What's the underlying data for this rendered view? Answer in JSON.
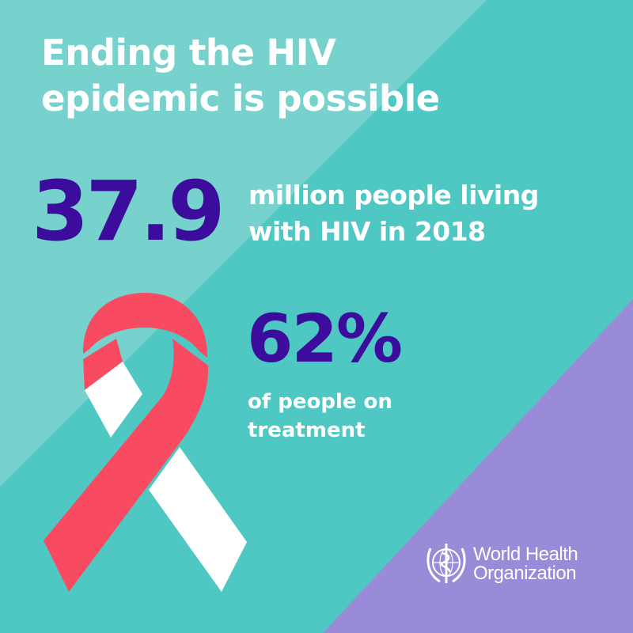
{
  "colors": {
    "background": "#4fc7c2",
    "light_band": "#77d1cc",
    "purple_corner": "#9a8bd8",
    "accent_text": "#3c0d9c",
    "ribbon_red": "#f84b62",
    "ribbon_white": "#ffffff"
  },
  "title": {
    "line1": "Ending the HIV",
    "line2": "epidemic is possible"
  },
  "stat1": {
    "value": "37.9",
    "line1": "million people living",
    "line2": "with HIV in 2018"
  },
  "stat2": {
    "value": "62%",
    "line1": "of people on",
    "line2": "treatment"
  },
  "icons": {
    "ribbon": "awareness-ribbon-icon",
    "emblem": "who-emblem-icon"
  },
  "logo": {
    "line1": "World Health",
    "line2": "Organization"
  }
}
